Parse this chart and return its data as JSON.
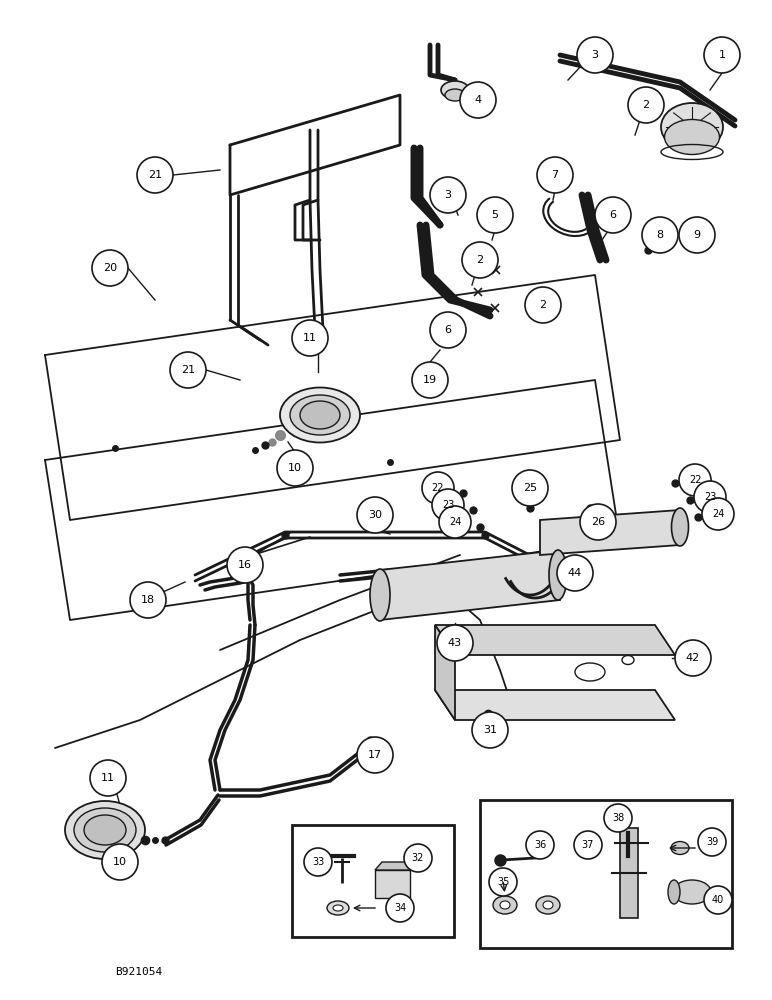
{
  "bg_color": "#ffffff",
  "fig_width": 7.72,
  "fig_height": 10.0,
  "watermark": "B921054",
  "line_color": "#1a1a1a",
  "circle_color": "#1a1a1a"
}
